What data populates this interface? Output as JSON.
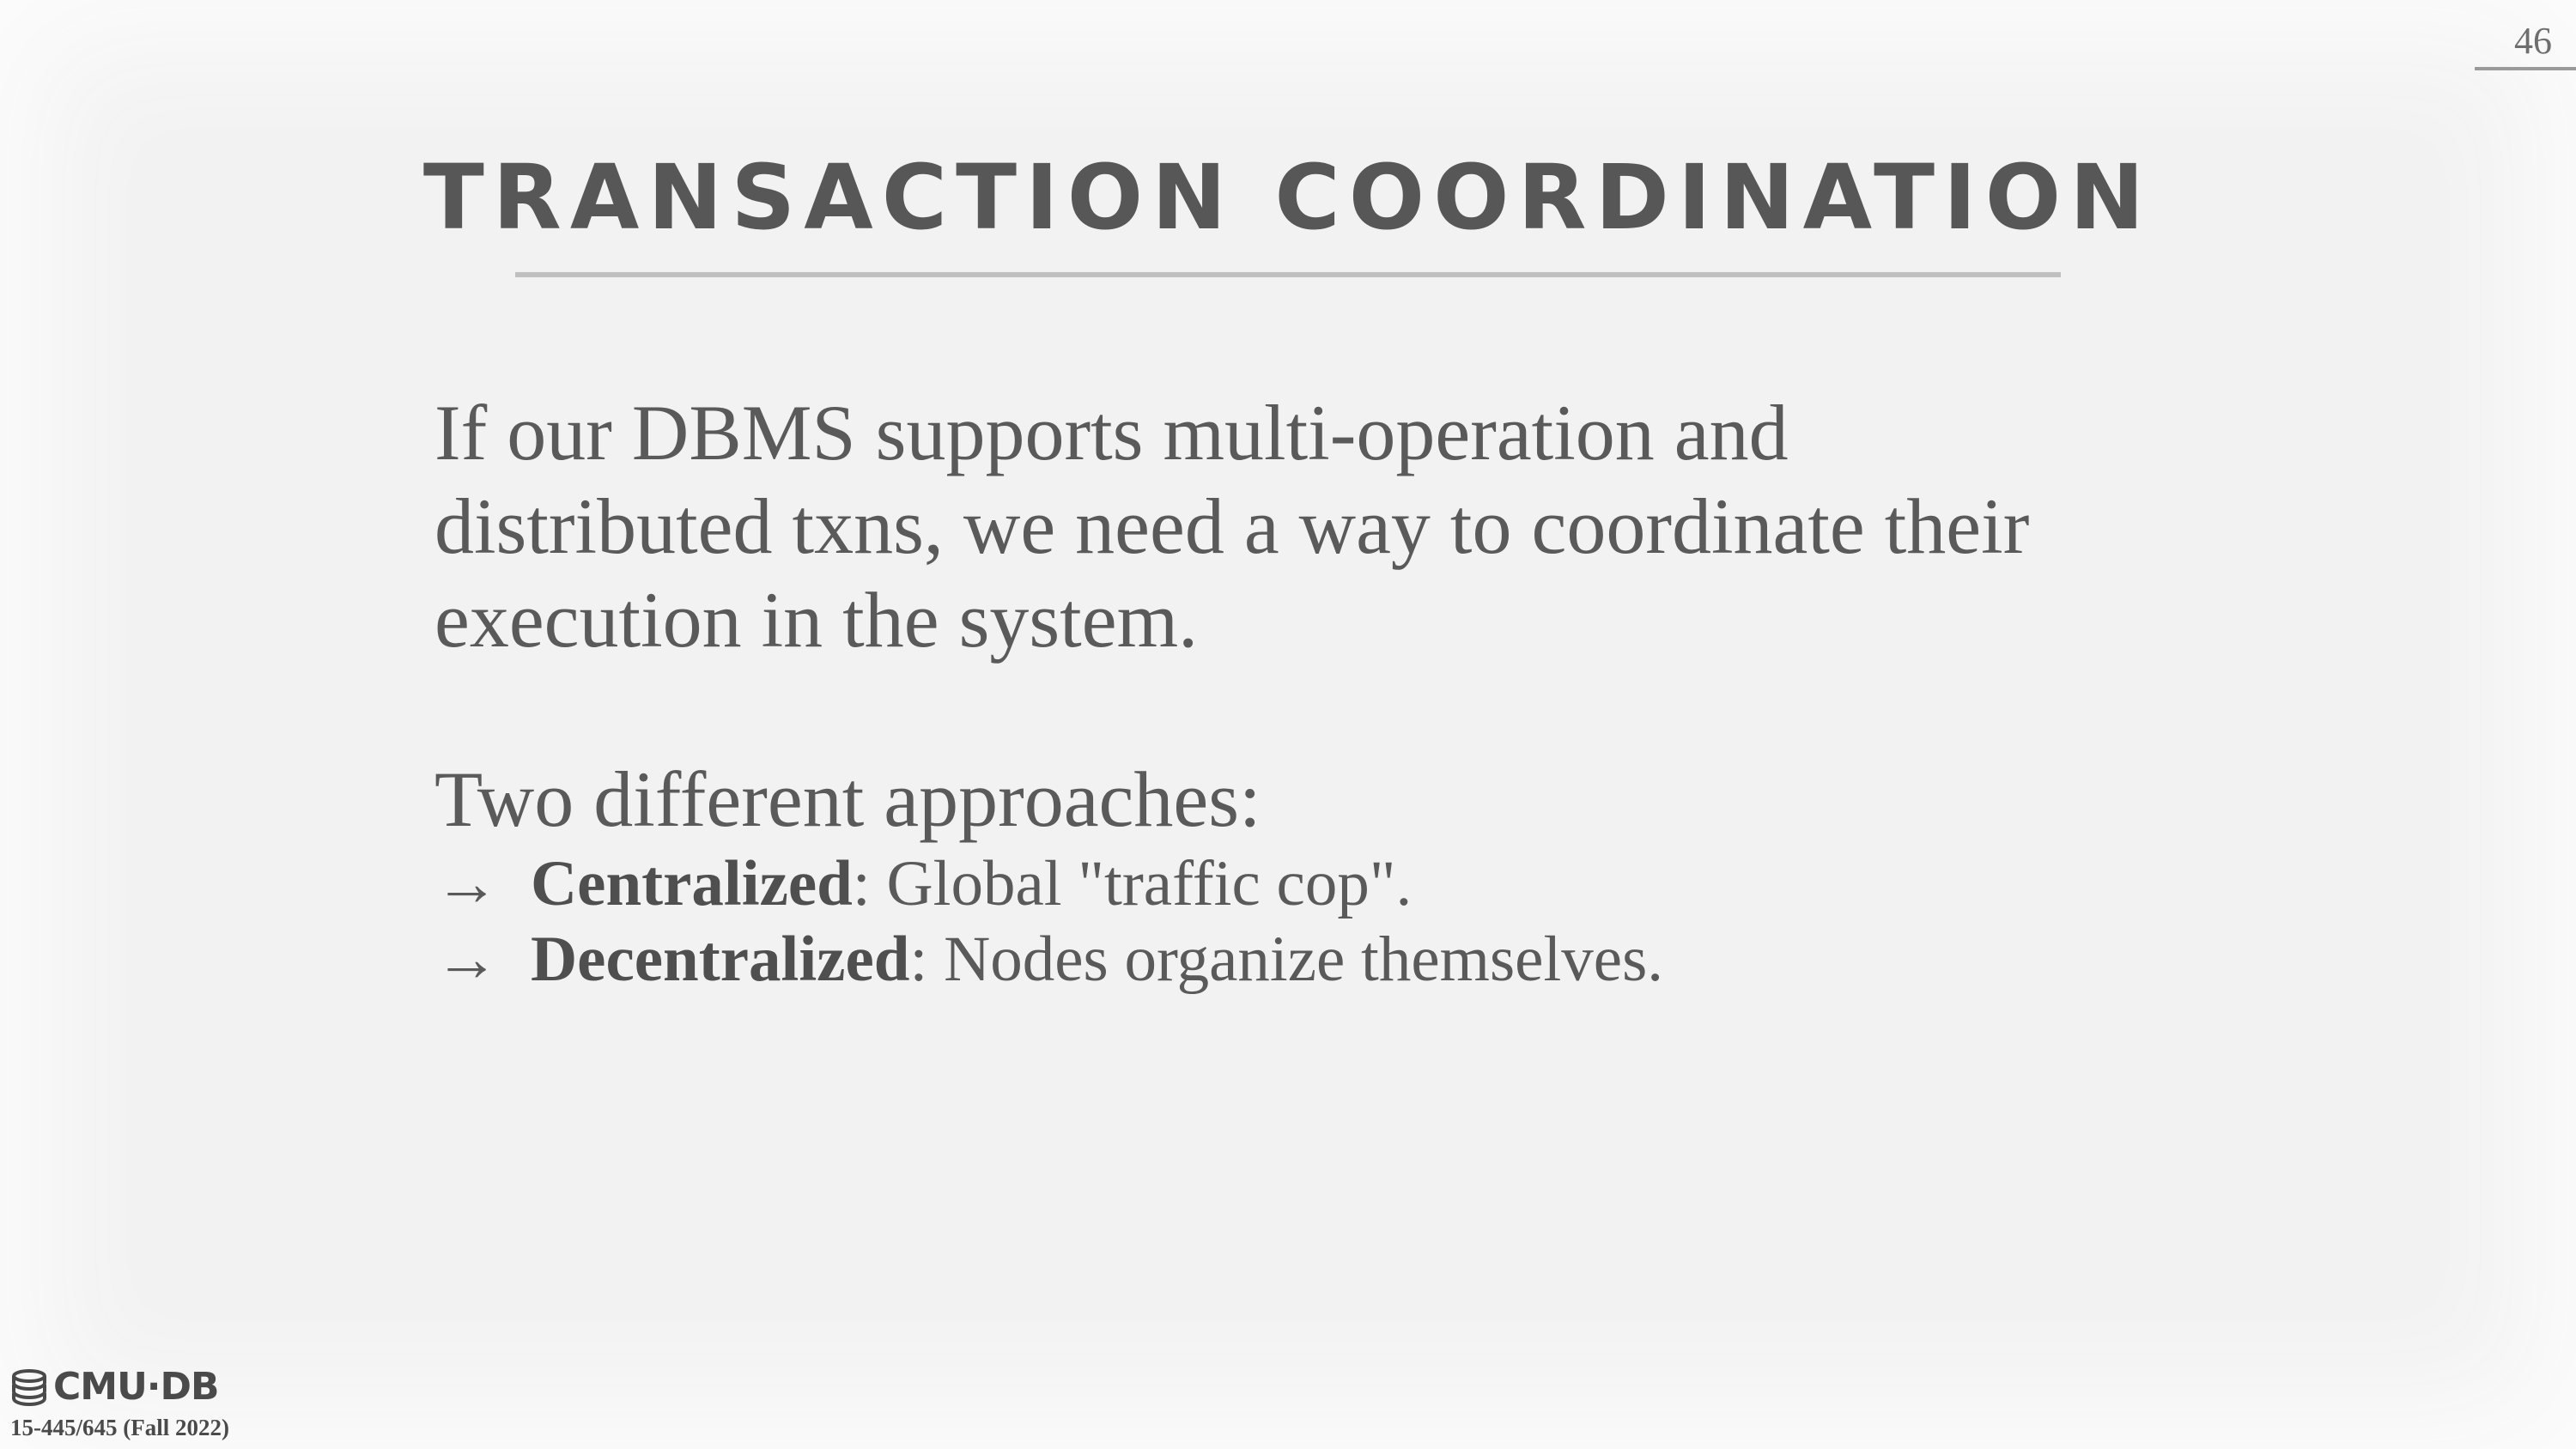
{
  "page_number": "46",
  "title": "TRANSACTION COORDINATION",
  "paragraph": {
    "line1": "If our DBMS supports multi-operation and",
    "line2": "distributed txns, we need a way to coordinate their",
    "line3": "execution in the system."
  },
  "approaches_heading": "Two different approaches:",
  "bullets": [
    {
      "arrow": "→",
      "term": "Centralized",
      "sep": ":",
      "desc": " Global \"traffic cop\"."
    },
    {
      "arrow": "→",
      "term": "Decentralized",
      "sep": ":",
      "desc": " Nodes organize themselves."
    }
  ],
  "footer": {
    "logo_text": "CMU·DB",
    "logo_icon": "database-stack-icon",
    "course": "15-445/645 (Fall 2022)"
  }
}
